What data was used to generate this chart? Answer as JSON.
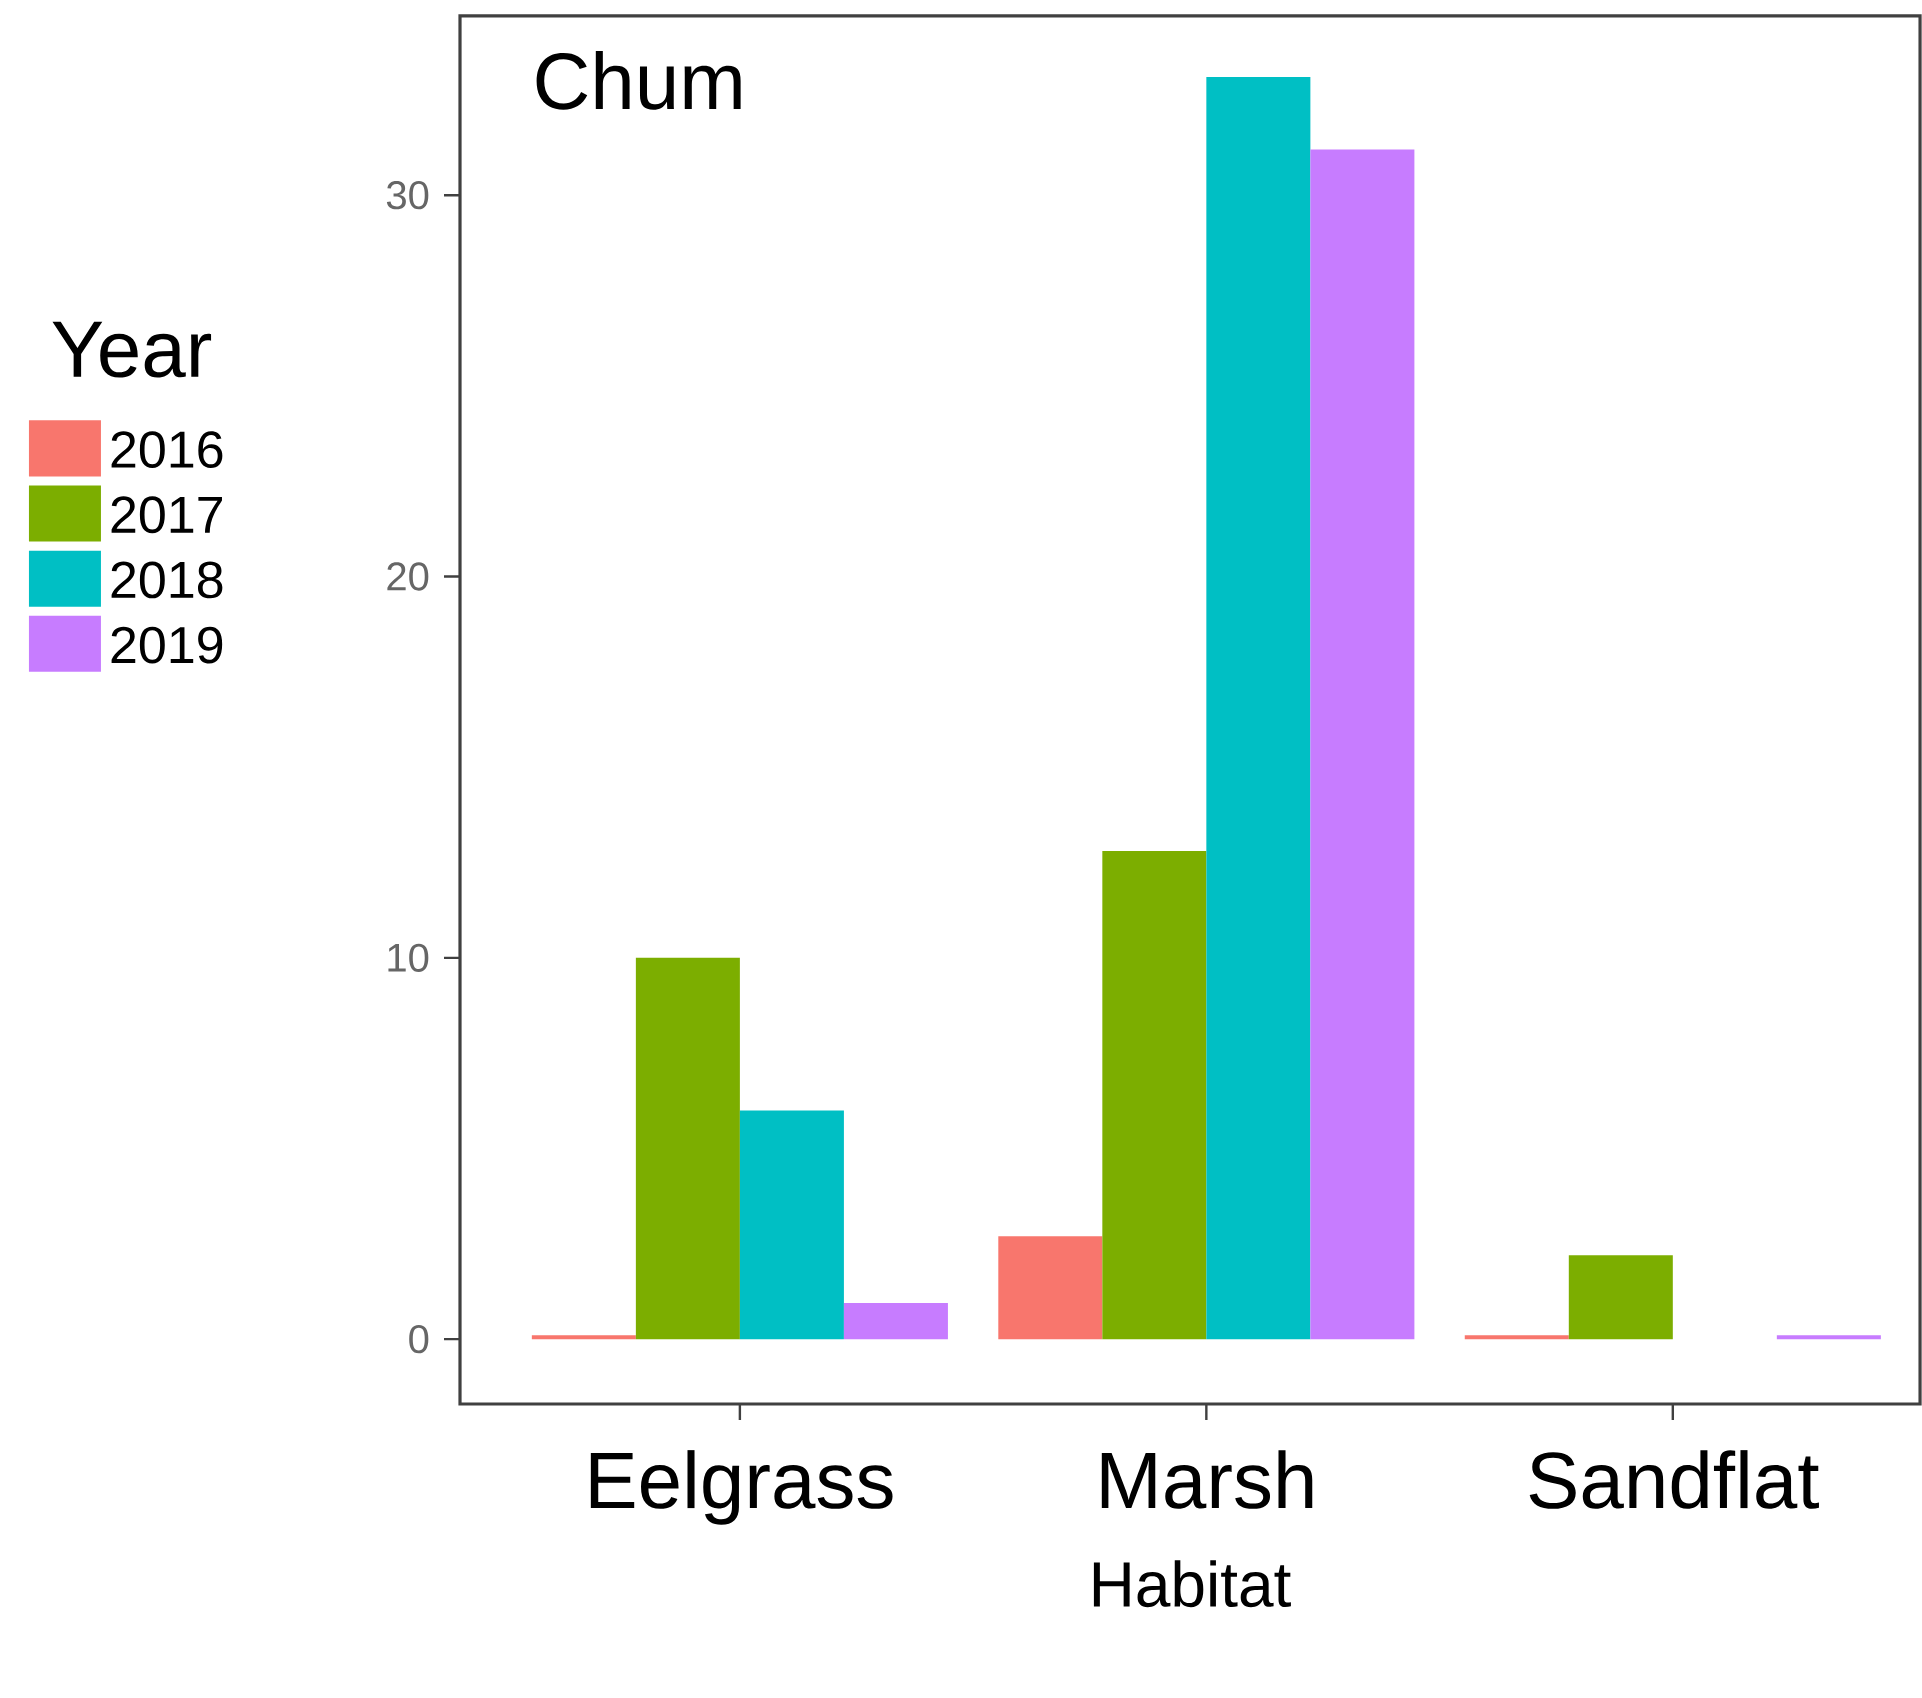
{
  "chart_data": {
    "type": "bar",
    "title": "Chum",
    "xlabel": "Habitat",
    "legend_title": "Year",
    "legend": "left",
    "categories": [
      "Eelgrass",
      "Marsh",
      "Sandflat"
    ],
    "ylim": [
      -1.7,
      34.7
    ],
    "yticks": [
      0,
      10,
      20,
      30
    ],
    "series": [
      {
        "name": "2016",
        "color": "#f8766d",
        "values": [
          0.1,
          2.7,
          0.1
        ]
      },
      {
        "name": "2017",
        "color": "#7cae00",
        "values": [
          10,
          12.8,
          2.2
        ]
      },
      {
        "name": "2018",
        "color": "#00bfc4",
        "values": [
          6,
          33.1,
          null
        ]
      },
      {
        "name": "2019",
        "color": "#c77cff",
        "values": [
          0.95,
          31.2,
          0.1
        ]
      }
    ]
  }
}
